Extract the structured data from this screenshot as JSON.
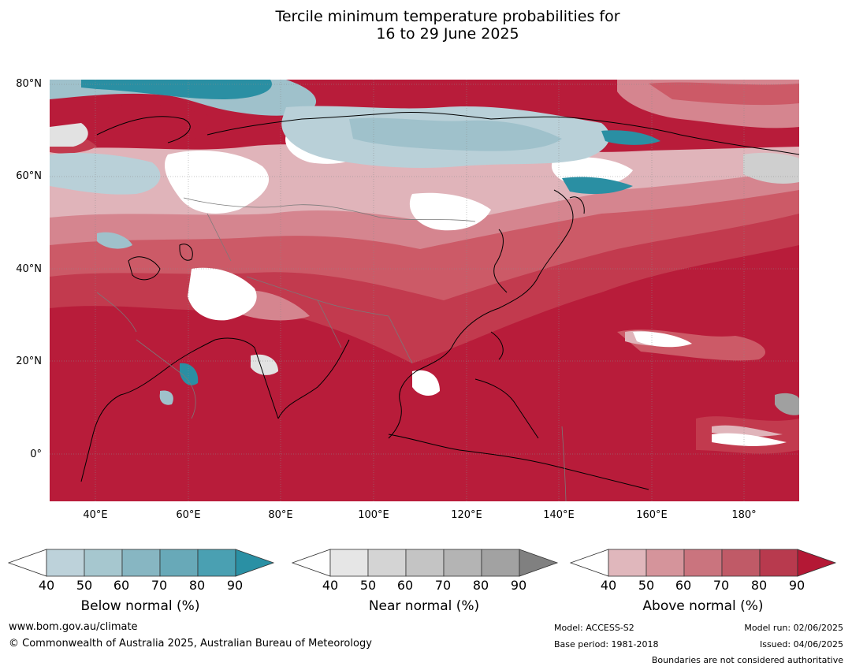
{
  "title_line1": "Tercile minimum temperature probabilities for",
  "title_line2": "16 to 29 June 2025",
  "map": {
    "latitude_ticks": [
      "80°N",
      "60°N",
      "40°N",
      "20°N",
      "0°"
    ],
    "longitude_ticks": [
      "40°E",
      "60°E",
      "80°E",
      "100°E",
      "120°E",
      "140°E",
      "160°E",
      "180°"
    ],
    "colors": {
      "above_90": "#b81c3a",
      "above_80": "#c23a4e",
      "above_70": "#cc5a67",
      "above_60": "#d5858f",
      "above_50": "#e0b4ba",
      "near_white": "#ffffff",
      "near_50": "#e2e2e2",
      "near_60": "#cfcfcf",
      "below_50": "#b9d0d8",
      "below_60": "#9fc1cb",
      "below_80": "#2a8fa3"
    }
  },
  "colorbars": [
    {
      "name": "below",
      "label": "Below normal (%)",
      "ticks": [
        "40",
        "50",
        "60",
        "70",
        "80",
        "90"
      ],
      "colors": [
        "#ffffff",
        "#bdd2da",
        "#a6c7cf",
        "#87b6c2",
        "#68a9b8",
        "#4aa0b2",
        "#2a90a4"
      ]
    },
    {
      "name": "near",
      "label": "Near normal (%)",
      "ticks": [
        "40",
        "50",
        "60",
        "70",
        "80",
        "90"
      ],
      "colors": [
        "#ffffff",
        "#e6e6e6",
        "#d4d4d4",
        "#c4c4c4",
        "#b4b4b4",
        "#a2a2a2",
        "#808080"
      ]
    },
    {
      "name": "above",
      "label": "Above normal (%)",
      "ticks": [
        "40",
        "50",
        "60",
        "70",
        "80",
        "90"
      ],
      "colors": [
        "#ffffff",
        "#e0b7bc",
        "#d5949b",
        "#ca747e",
        "#c05a67",
        "#b83a4e",
        "#b41835"
      ]
    }
  ],
  "footer": {
    "website": "www.bom.gov.au/climate",
    "copyright": "© Commonwealth of Australia 2025, Australian Bureau of Meteorology",
    "model": "Model: ACCESS-S2",
    "base_period": "Base period: 1981-2018",
    "model_run": "Model run: 02/06/2025",
    "issued": "Issued: 04/06/2025",
    "disclaimer": "Boundaries are not considered authoritative"
  }
}
